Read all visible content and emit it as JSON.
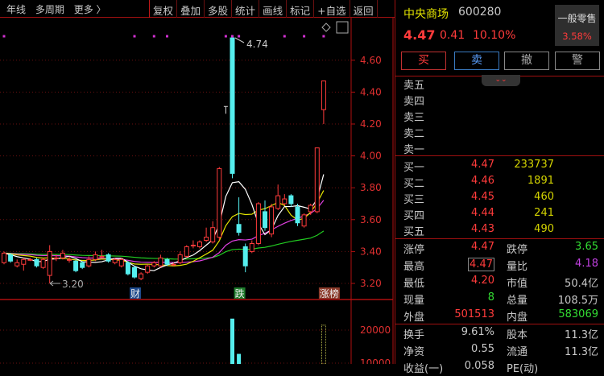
{
  "toolbar": {
    "left": [
      "年线",
      "多周期",
      "更多 〉"
    ],
    "buttons": [
      "复权",
      "叠加",
      "多股",
      "统计",
      "画线",
      "标记",
      "+自选",
      "返回"
    ]
  },
  "chart_data": {
    "type": "candlestick",
    "price_axis": {
      "ticks": [
        "4.60",
        "4.40",
        "4.20",
        "4.00",
        "3.80",
        "3.60",
        "3.40",
        "3.20"
      ],
      "ylim": [
        3.16,
        4.84
      ]
    },
    "volume_axis": {
      "ticks": [
        "20000",
        "10000"
      ]
    },
    "annotations": {
      "high": "4.74",
      "low": "3.20"
    },
    "candles": [
      [
        3.33,
        3.4,
        3.32,
        3.39
      ],
      [
        3.38,
        3.39,
        3.33,
        3.34
      ],
      [
        3.31,
        3.35,
        3.3,
        3.33
      ],
      [
        3.32,
        3.36,
        3.28,
        3.35
      ],
      [
        3.35,
        3.36,
        3.34,
        3.35
      ],
      [
        3.35,
        3.36,
        3.3,
        3.31
      ],
      [
        3.3,
        3.36,
        3.29,
        3.35
      ],
      [
        3.25,
        3.44,
        3.2,
        3.4
      ],
      [
        3.36,
        3.38,
        3.34,
        3.36
      ],
      [
        3.36,
        3.41,
        3.35,
        3.39
      ],
      [
        3.35,
        3.37,
        3.33,
        3.35
      ],
      [
        3.34,
        3.35,
        3.27,
        3.28
      ],
      [
        3.33,
        3.34,
        3.29,
        3.3
      ],
      [
        3.31,
        3.37,
        3.3,
        3.35
      ],
      [
        3.35,
        3.4,
        3.34,
        3.38
      ],
      [
        3.37,
        3.41,
        3.36,
        3.37
      ],
      [
        3.38,
        3.39,
        3.33,
        3.34
      ],
      [
        3.33,
        3.36,
        3.32,
        3.35
      ],
      [
        3.31,
        3.36,
        3.3,
        3.35
      ],
      [
        3.33,
        3.34,
        3.25,
        3.26
      ],
      [
        3.3,
        3.31,
        3.23,
        3.24
      ],
      [
        3.23,
        3.27,
        3.22,
        3.26
      ],
      [
        3.27,
        3.32,
        3.26,
        3.31
      ],
      [
        3.31,
        3.34,
        3.3,
        3.33
      ],
      [
        3.31,
        3.38,
        3.3,
        3.36
      ],
      [
        3.35,
        3.36,
        3.31,
        3.32
      ],
      [
        3.32,
        3.33,
        3.31,
        3.32
      ],
      [
        3.33,
        3.4,
        3.32,
        3.38
      ],
      [
        3.37,
        3.44,
        3.36,
        3.43
      ],
      [
        3.44,
        3.47,
        3.42,
        3.44
      ],
      [
        3.43,
        3.47,
        3.42,
        3.46
      ],
      [
        3.47,
        3.55,
        3.46,
        3.49
      ],
      [
        3.46,
        3.59,
        3.45,
        3.55
      ],
      [
        3.49,
        3.93,
        3.47,
        3.92
      ],
      [
        4.31,
        4.31,
        4.31,
        4.31
      ],
      [
        4.74,
        4.74,
        3.86,
        3.89
      ],
      [
        3.57,
        3.74,
        3.5,
        3.52
      ],
      [
        3.43,
        3.45,
        3.27,
        3.31
      ],
      [
        3.4,
        3.47,
        3.39,
        3.45
      ],
      [
        3.45,
        3.71,
        3.44,
        3.7
      ],
      [
        3.65,
        3.72,
        3.53,
        3.55
      ],
      [
        3.51,
        3.7,
        3.49,
        3.68
      ],
      [
        3.67,
        3.82,
        3.66,
        3.75
      ],
      [
        3.7,
        3.76,
        3.69,
        3.73
      ],
      [
        3.75,
        3.76,
        3.68,
        3.7
      ],
      [
        3.68,
        3.7,
        3.56,
        3.58
      ],
      [
        3.56,
        3.64,
        3.55,
        3.63
      ],
      [
        3.65,
        3.7,
        3.63,
        3.69
      ],
      [
        3.65,
        4.05,
        3.64,
        4.05
      ],
      [
        4.29,
        4.47,
        4.2,
        4.47
      ]
    ],
    "volumes": [
      3000,
      2500,
      2000,
      2200,
      1500,
      2000,
      2600,
      5000,
      1800,
      2400,
      1600,
      2500,
      2000,
      2200,
      2600,
      1800,
      2000,
      1700,
      1900,
      3000,
      3200,
      2500,
      2400,
      1800,
      2600,
      2000,
      1500,
      2800,
      3500,
      2500,
      3000,
      3200,
      4500,
      9000,
      800,
      23500,
      12800,
      9000,
      6000,
      8500,
      7000,
      8000,
      8800,
      6000,
      6500,
      7000,
      5500,
      6000,
      9000,
      21500
    ],
    "ma_colors": {
      "ma5": "#ffffff",
      "ma10": "#e6e600",
      "ma20": "#e040e0",
      "ma60": "#22cc22"
    },
    "marker_dots": [
      0,
      20,
      23,
      25,
      34,
      35,
      36,
      43,
      46,
      49
    ],
    "event_tags": [
      {
        "index": 20,
        "text": "财",
        "color": "#1e4a8c"
      },
      {
        "index": 36,
        "text": "跌",
        "color": "#1d7a2a"
      },
      {
        "index": 49,
        "text": "涨榜",
        "color": "#8a3a2a"
      }
    ]
  },
  "quote": {
    "name": "中央商场",
    "code": "600280",
    "price": "4.47",
    "change": "0.41",
    "change_pct": "10.10%",
    "sector": "一般零售",
    "sector_pct": "3.58%",
    "buttons": [
      "买",
      "卖",
      "撤",
      "警"
    ],
    "sell": [
      {
        "label": "卖五"
      },
      {
        "label": "卖四"
      },
      {
        "label": "卖三"
      },
      {
        "label": "卖二"
      },
      {
        "label": "卖一"
      }
    ],
    "buy": [
      {
        "label": "买一",
        "price": "4.47",
        "vol": "233737"
      },
      {
        "label": "买二",
        "price": "4.46",
        "vol": "1891"
      },
      {
        "label": "买三",
        "price": "4.45",
        "vol": "460"
      },
      {
        "label": "买四",
        "price": "4.44",
        "vol": "241"
      },
      {
        "label": "买五",
        "price": "4.43",
        "vol": "490"
      }
    ],
    "stats": [
      {
        "l1": "涨停",
        "v1": "4.47",
        "l2": "跌停",
        "v2": "3.65"
      },
      {
        "l1": "最高",
        "v1": "4.47",
        "l2": "量比",
        "v2": "4.18"
      },
      {
        "l1": "最低",
        "v1": "4.20",
        "l2": "市值",
        "v2": "50.4亿"
      },
      {
        "l1": "现量",
        "v1": "8",
        "l2": "总量",
        "v2": "108.5万"
      },
      {
        "l1": "外盘",
        "v1": "501513",
        "l2": "内盘",
        "v2": "583069"
      }
    ],
    "fund": [
      {
        "l1": "换手",
        "v1": "9.61%",
        "l2": "股本",
        "v2": "11.3亿"
      },
      {
        "l1": "净资",
        "v1": "0.55",
        "l2": "流通",
        "v2": "11.3亿"
      },
      {
        "l1": "收益(一)",
        "v1": "0.058",
        "l2": "PE(动)",
        "v2": ""
      }
    ]
  }
}
